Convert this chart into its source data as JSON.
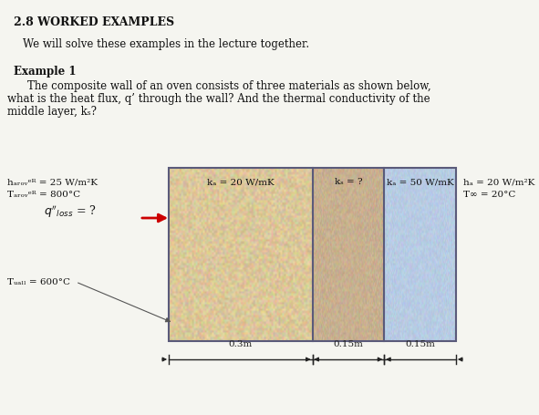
{
  "title": "2.8 WORKED EXAMPLES",
  "subtitle": "We will solve these examples in the lecture together.",
  "example_header": "Example 1",
  "example_line1": "    The composite wall of an oven consists of three materials as shown below,",
  "example_line2": "what is the heat flux, q’ through the wall? And the thermal conductivity of the",
  "example_line3": "middle layer, kₛ?",
  "background_color": "#f5f5f0",
  "layer1_color": "#dcc89a",
  "layer2_color": "#c8b090",
  "layer3_color": "#b8cce4",
  "left_label1": "hₐᵣₒᵥᵉᴿ = 25 W/m²K",
  "left_label2": "Tₐᵣₒᵥᵉᴿ = 800°C",
  "right_label1": "hₐ = 20 W/m²K",
  "right_label2": "T∞ = 20°C",
  "layer1_label": "kₐ = 20 W/mK",
  "layer2_label": "kₛ = ?",
  "layer3_label": "kₐ = 50 W/mK",
  "wall_temp_label": "Tᵤₐₗₗ = 600°C",
  "dim1_label": "0.3m",
  "dim2_label": "0.15m",
  "dim3_label": "0.15m",
  "border_color": "#5a5a7a",
  "arrow_color": "#cc0000",
  "text_color": "#111111",
  "dim_color": "#222222",
  "title_fontsize": 9,
  "body_fontsize": 8.5,
  "label_fontsize": 7.5
}
